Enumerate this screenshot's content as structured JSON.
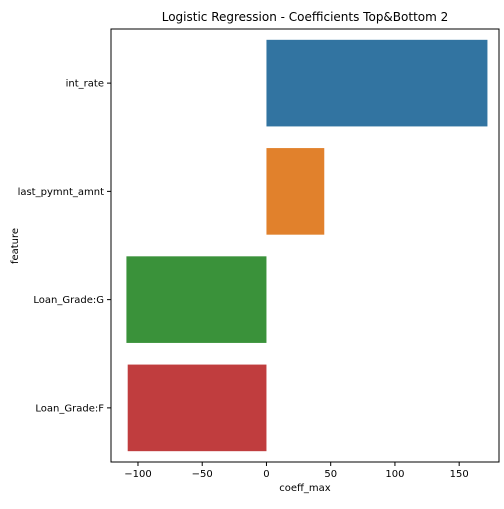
{
  "chart_data": {
    "type": "bar",
    "orientation": "horizontal",
    "title": "Logistic Regression - Coefficients Top&Bottom 2",
    "xlabel": "coeff_max",
    "ylabel": "feature",
    "categories": [
      "int_rate",
      "last_pymnt_amnt",
      "Loan_Grade:G",
      "Loan_Grade:F"
    ],
    "values": [
      172,
      45,
      -109,
      -108
    ],
    "colors": [
      "#3274a1",
      "#e1812c",
      "#3a923a",
      "#c03d3e"
    ],
    "xlim": [
      -121,
      181
    ],
    "xticks": [
      -100,
      -50,
      0,
      50,
      100,
      150
    ],
    "xtick_labels": [
      "−100",
      "−50",
      "0",
      "50",
      "100",
      "150"
    ],
    "grid": false,
    "legend": "none"
  }
}
